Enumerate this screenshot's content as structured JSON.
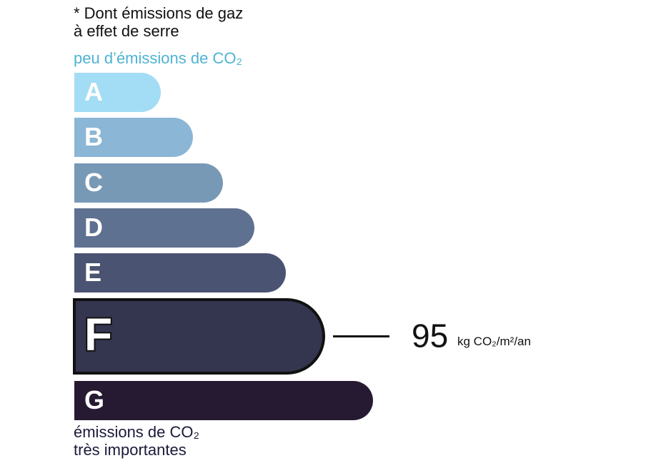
{
  "header": {
    "lines": [
      "* Dont émissions de gaz",
      "à effet de serre"
    ]
  },
  "top_label": "peu d’émissions de CO₂",
  "classes": [
    {
      "label": "A",
      "color": "#a3dcf5"
    },
    {
      "label": "B",
      "color": "#8bb6d6"
    },
    {
      "label": "C",
      "color": "#7899b6"
    },
    {
      "label": "D",
      "color": "#5f7191"
    },
    {
      "label": "E",
      "color": "#4a5372"
    },
    {
      "label": "F",
      "color": "#34364f"
    },
    {
      "label": "G",
      "color": "#261a33"
    }
  ],
  "rating": {
    "class": "F",
    "value": 95,
    "unit": "kg CO₂/m²/an"
  },
  "bottom_label": {
    "lines": [
      "émissions de CO₂",
      "très importantes"
    ]
  }
}
